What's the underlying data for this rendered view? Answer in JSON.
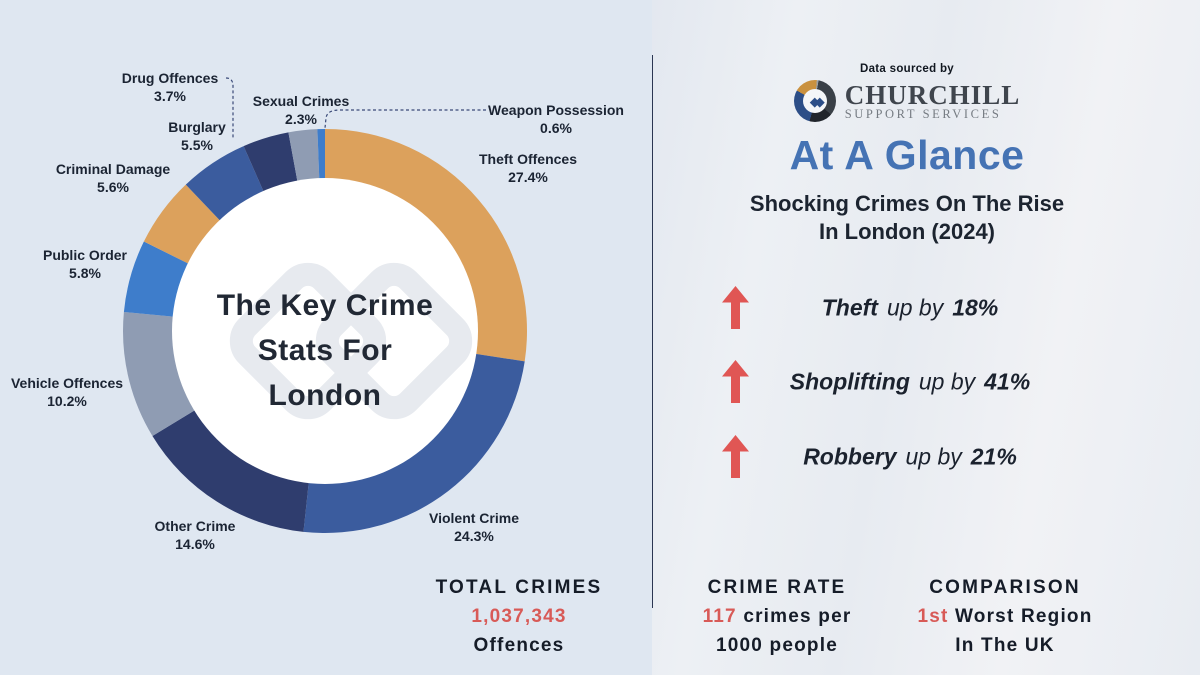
{
  "chart_data": {
    "type": "pie",
    "subtype": "donut",
    "title": "The Key Crime\nStats For\nLondon",
    "legend_position": "around-labels",
    "direction": "clockwise",
    "start_angle_deg": 0,
    "segments": [
      {
        "label": "Theft Offences",
        "pct_label": "27.4%",
        "value": 27.4,
        "color": "#DCA15C"
      },
      {
        "label": "Violent Crime",
        "pct_label": "24.3%",
        "value": 24.3,
        "color": "#3B5C9E"
      },
      {
        "label": "Other Crime",
        "pct_label": "14.6%",
        "value": 14.6,
        "color": "#2F3D6E"
      },
      {
        "label": "Vehicle Offences",
        "pct_label": "10.2%",
        "value": 10.2,
        "color": "#8F9CB3"
      },
      {
        "label": "Public Order",
        "pct_label": "5.8%",
        "value": 5.8,
        "color": "#3E7DCB"
      },
      {
        "label": "Criminal Damage",
        "pct_label": "5.6%",
        "value": 5.6,
        "color": "#DCA15C"
      },
      {
        "label": "Burglary",
        "pct_label": "5.5%",
        "value": 5.5,
        "color": "#3B5C9E"
      },
      {
        "label": "Drug Offences",
        "pct_label": "3.7%",
        "value": 3.7,
        "color": "#2F3D6E"
      },
      {
        "label": "Sexual Crimes",
        "pct_label": "2.3%",
        "value": 2.3,
        "color": "#8F9CB3"
      },
      {
        "label": "Weapon Possession",
        "pct_label": "0.6%",
        "value": 0.6,
        "color": "#3E7DCB"
      }
    ]
  },
  "header": {
    "data_sourced": "Data sourced by",
    "brand_name": "CHURCHILL",
    "brand_sub": "SUPPORT SERVICES",
    "title": "At A Glance",
    "subtitle": "Shocking Crimes On The Rise\nIn London (2024)"
  },
  "rising_stats": [
    {
      "crime": "Theft",
      "connector": "up by",
      "value": "18%"
    },
    {
      "crime": "Shoplifting",
      "connector": "up by",
      "value": "41%"
    },
    {
      "crime": "Robbery",
      "connector": "up by",
      "value": "21%"
    }
  ],
  "summary": {
    "total": {
      "heading": "TOTAL CRIMES",
      "value": "1,037,343",
      "line2": "Offences"
    },
    "rate": {
      "heading": "CRIME RATE",
      "value": "117",
      "line1_rest": "crimes per",
      "line2": "1000 people"
    },
    "comparison": {
      "heading": "COMPARISON",
      "value": "1st",
      "line1_rest": "Worst Region",
      "line2": "In The UK"
    }
  },
  "colors": {
    "accent_red": "#D85A57",
    "arrow_red": "#E05654",
    "accent_blue": "#4573B4",
    "background_left": "#DFE7F1",
    "dark_text": "#1B222E"
  }
}
